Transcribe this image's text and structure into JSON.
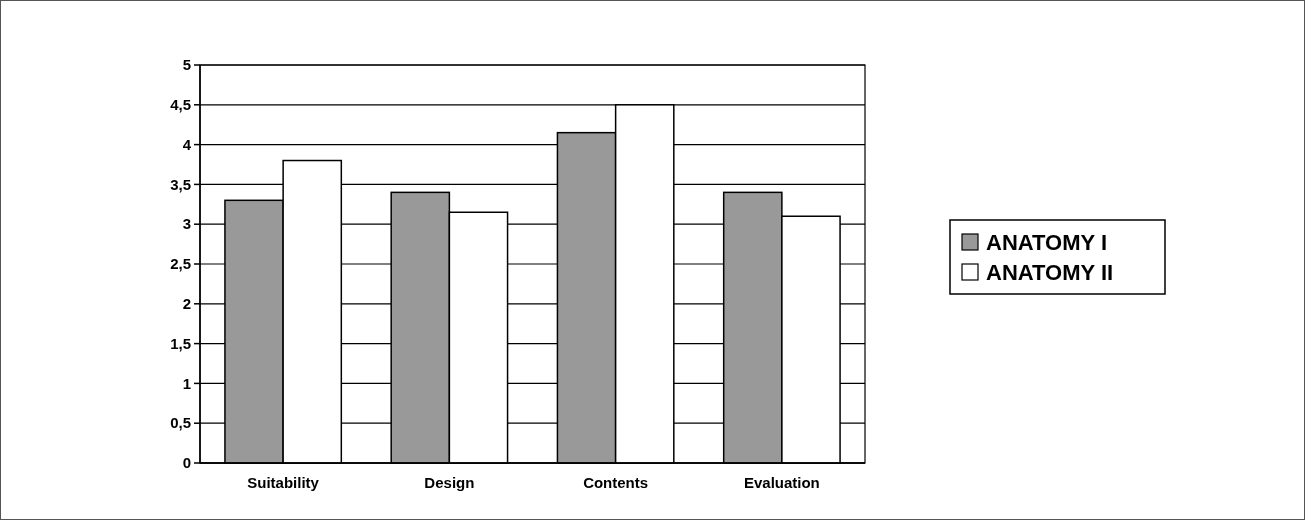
{
  "chart_data": {
    "type": "bar",
    "categories": [
      "Suitability",
      "Design",
      "Contents",
      "Evaluation"
    ],
    "series": [
      {
        "name": "ANATOMY I",
        "color": "#999999",
        "values": [
          3.3,
          3.4,
          4.15,
          3.4
        ]
      },
      {
        "name": "ANATOMY II",
        "color": "#ffffff",
        "values": [
          3.8,
          3.15,
          4.5,
          3.1
        ]
      }
    ],
    "ylim": [
      0,
      5
    ],
    "yticks": [
      0,
      {
        "value": 0.5,
        "label": "0,5"
      },
      1,
      {
        "value": 1.5,
        "label": "1,5"
      },
      2,
      {
        "value": 2.5,
        "label": "2,5"
      },
      3,
      {
        "value": 3.5,
        "label": "3,5"
      },
      4,
      {
        "value": 4.5,
        "label": "4,5"
      },
      5
    ],
    "grid": "y",
    "legend": "right"
  }
}
